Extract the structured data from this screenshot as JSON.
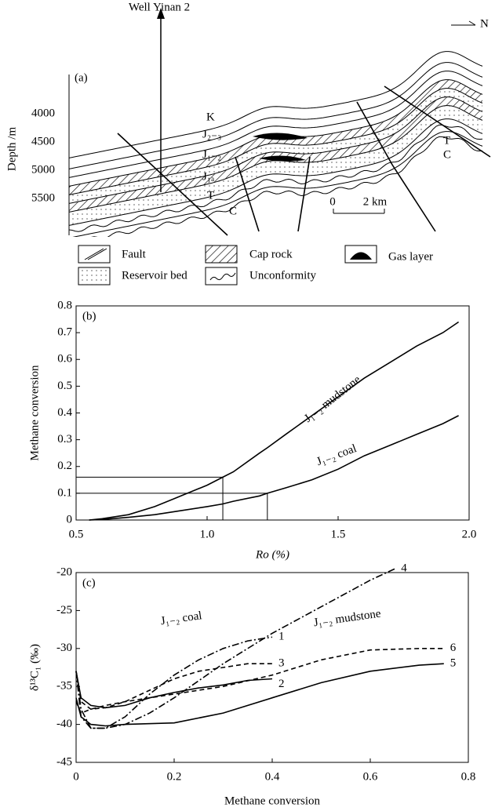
{
  "diagram": {
    "panel_label": "(a)",
    "well_label": "Well Yinan 2",
    "north_label": "N",
    "depth_axis_label": "Depth /m",
    "depth_ticks": [
      4000,
      4500,
      5000,
      5500
    ],
    "layer_labels": [
      "K",
      "J₂₋₃",
      "J₁₋₂",
      "J₁ₐ",
      "T",
      "C",
      "T",
      "C"
    ],
    "scale_labels": [
      "0",
      "2 km"
    ],
    "legend": [
      "Fault",
      "Cap rock",
      "Gas layer",
      "Reservoir bed",
      "Unconformity"
    ]
  },
  "chart_data": [
    {
      "type": "line",
      "panel_label": "(b)",
      "x_label": "Ro (%)",
      "y_label": "Methane conversion",
      "xlim": [
        0.5,
        2.0
      ],
      "xticks": [
        0.5,
        {
          "value": 1,
          "label": "1.0"
        },
        1.5,
        {
          "value": 2,
          "label": "2.0"
        }
      ],
      "ylim": [
        0,
        0.8
      ],
      "yticks": [
        0,
        0.1,
        0.2,
        0.3,
        0.4,
        0.5,
        0.6,
        0.7,
        0.8
      ],
      "x": [
        0.55,
        0.6,
        0.7,
        0.8,
        0.9,
        1.0,
        1.06,
        1.1,
        1.2,
        1.23,
        1.3,
        1.4,
        1.5,
        1.6,
        1.7,
        1.8,
        1.9,
        1.96
      ],
      "series": [
        {
          "name": "J₁₋₂ mudstone",
          "color": "#000000",
          "dash": "solid",
          "values": [
            0,
            0.005,
            0.02,
            0.05,
            0.09,
            0.13,
            0.16,
            0.18,
            0.25,
            0.27,
            0.32,
            0.39,
            0.46,
            0.53,
            0.59,
            0.65,
            0.7,
            0.74
          ]
        },
        {
          "name": "J₁₋₂ coal",
          "color": "#000000",
          "dash": "solid",
          "values": [
            0,
            0.002,
            0.01,
            0.02,
            0.035,
            0.05,
            0.06,
            0.07,
            0.09,
            0.1,
            0.12,
            0.15,
            0.19,
            0.24,
            0.28,
            0.32,
            0.36,
            0.39
          ]
        }
      ],
      "guides": [
        {
          "x": 1.06,
          "y": 0.16
        },
        {
          "x": 1.23,
          "y": 0.1
        }
      ],
      "grid": false
    },
    {
      "type": "line",
      "panel_label": "(c)",
      "x_label": "Methane conversion",
      "y_label": "δ¹³C₁ (‰)",
      "xlim": [
        0,
        0.8
      ],
      "xticks": [
        0,
        0.2,
        0.4,
        0.6,
        0.8
      ],
      "ylim": [
        -45,
        -20
      ],
      "yticks": [
        -45,
        -40,
        -35,
        -30,
        -25,
        -20
      ],
      "annotations": [
        "J₁₋₂ coal",
        "J₁₋₂ mudstone"
      ],
      "series": [
        {
          "name": "1",
          "color": "#000000",
          "dash": "dash-dot",
          "x": [
            0,
            0.01,
            0.03,
            0.06,
            0.1,
            0.15,
            0.2,
            0.25,
            0.3,
            0.35,
            0.4
          ],
          "values": [
            -33,
            -38,
            -40.5,
            -40.5,
            -39,
            -36,
            -33.5,
            -31.5,
            -30,
            -29,
            -28.5
          ]
        },
        {
          "name": "2",
          "color": "#000000",
          "dash": "solid",
          "x": [
            0,
            0.01,
            0.03,
            0.06,
            0.1,
            0.15,
            0.2,
            0.25,
            0.3,
            0.35,
            0.4
          ],
          "values": [
            -33,
            -36.5,
            -37.5,
            -37.8,
            -37.5,
            -36.5,
            -35.8,
            -35.2,
            -34.8,
            -34.2,
            -34
          ]
        },
        {
          "name": "3",
          "color": "#000000",
          "dash": "dashed",
          "x": [
            0,
            0.01,
            0.03,
            0.06,
            0.1,
            0.15,
            0.2,
            0.25,
            0.3,
            0.35,
            0.4
          ],
          "values": [
            -33,
            -37,
            -38,
            -37.8,
            -37,
            -35.5,
            -34,
            -33,
            -32.5,
            -32,
            -32
          ]
        },
        {
          "name": "4",
          "color": "#000000",
          "dash": "dash-dot",
          "x": [
            0,
            0.01,
            0.03,
            0.06,
            0.1,
            0.15,
            0.2,
            0.3,
            0.4,
            0.5,
            0.6,
            0.65
          ],
          "values": [
            -33,
            -39,
            -40.5,
            -40.5,
            -40,
            -38.5,
            -36.5,
            -32,
            -28,
            -24.5,
            -21,
            -19.5
          ]
        },
        {
          "name": "5",
          "color": "#000000",
          "dash": "solid",
          "x": [
            0,
            0.01,
            0.03,
            0.06,
            0.1,
            0.2,
            0.3,
            0.4,
            0.5,
            0.6,
            0.7,
            0.75
          ],
          "values": [
            -36.5,
            -39,
            -40,
            -40.2,
            -40,
            -39.8,
            -38.5,
            -36.5,
            -34.5,
            -33,
            -32.2,
            -32
          ]
        },
        {
          "name": "6",
          "color": "#000000",
          "dash": "dashed",
          "x": [
            0,
            0.01,
            0.03,
            0.06,
            0.1,
            0.2,
            0.3,
            0.4,
            0.5,
            0.6,
            0.7,
            0.75
          ],
          "values": [
            -37,
            -38.5,
            -38,
            -37.5,
            -37,
            -36,
            -35,
            -33.5,
            -31.5,
            -30.2,
            -30,
            -30
          ]
        }
      ],
      "grid": false
    }
  ]
}
